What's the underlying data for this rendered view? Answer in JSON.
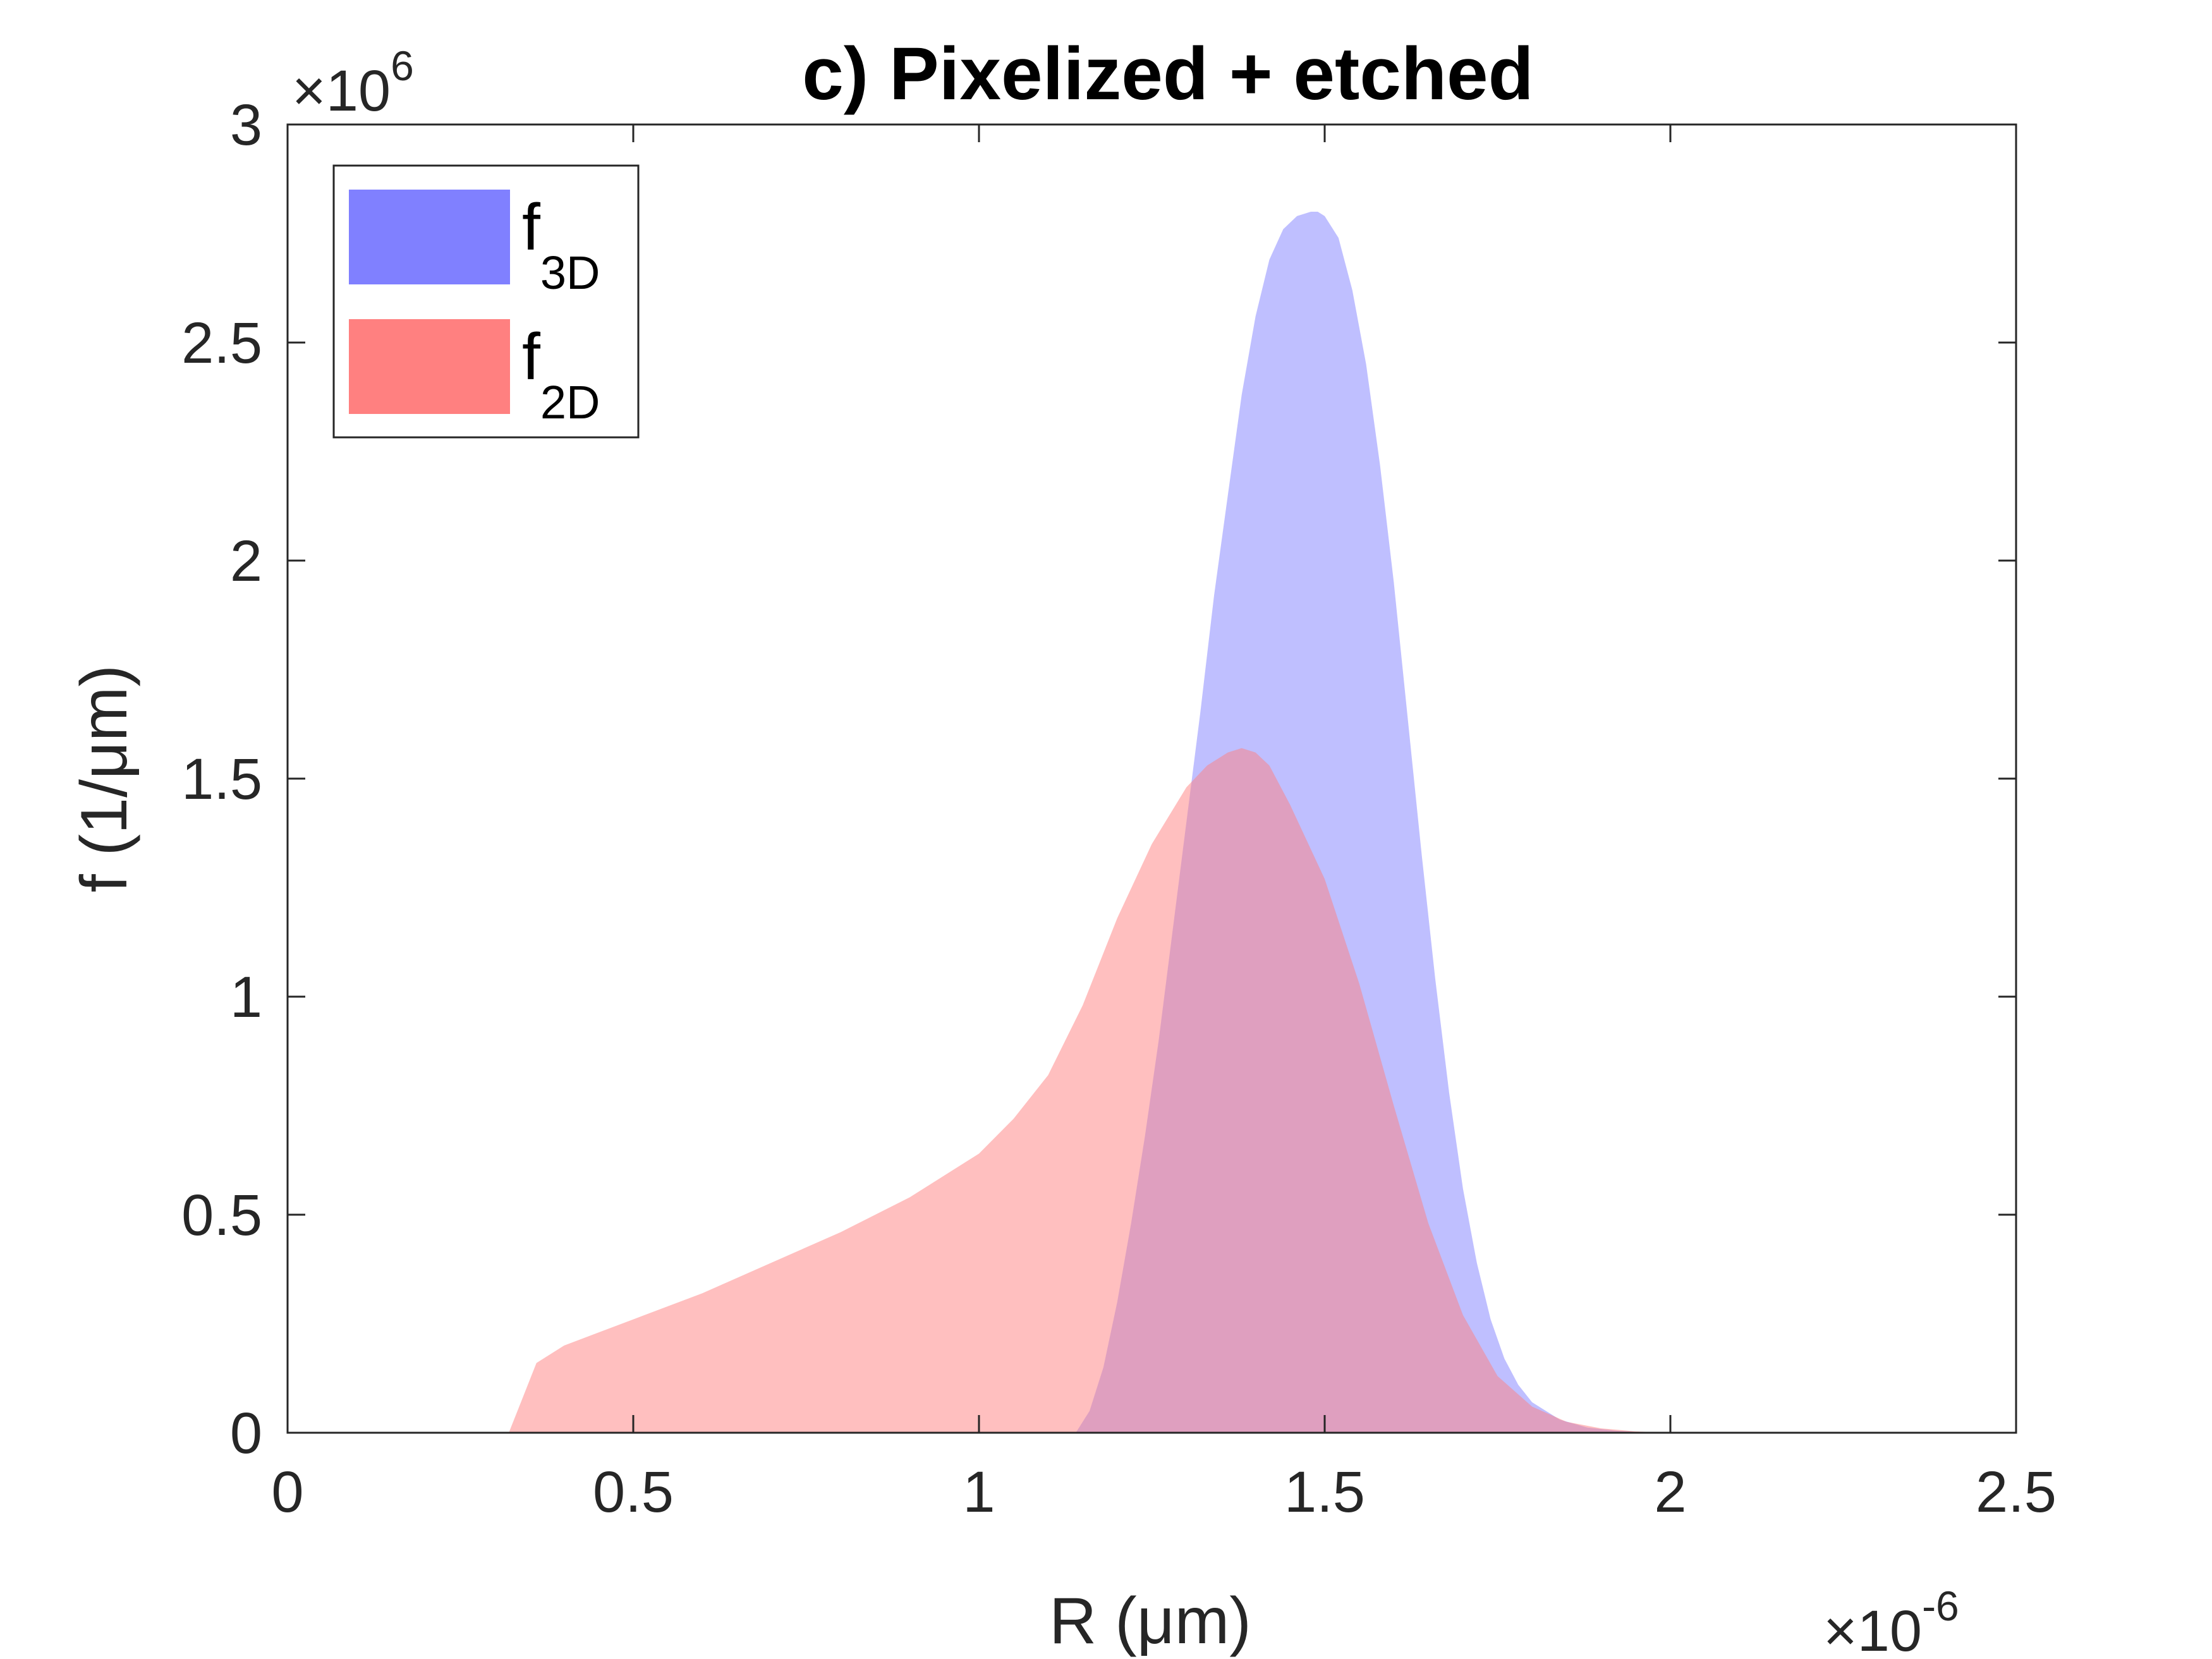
{
  "chart_data": {
    "type": "area",
    "title": "c) Pixelized + etched",
    "xlabel": "R (μm)",
    "ylabel": "f (1/μm)",
    "x_exponent": "×10",
    "x_exponent_power": "-6",
    "y_exponent": "×10",
    "y_exponent_power": "6",
    "xlim": [
      0,
      2.5e-06
    ],
    "ylim": [
      0,
      3000000.0
    ],
    "xticks": [
      0,
      5e-07,
      1e-06,
      1.5e-06,
      2e-06,
      2.5e-06
    ],
    "xtick_labels": [
      "0",
      "0.5",
      "1",
      "1.5",
      "2",
      "2.5"
    ],
    "yticks": [
      0,
      500000.0,
      1000000.0,
      1500000.0,
      2000000.0,
      2500000.0,
      3000000.0
    ],
    "ytick_labels": [
      "0",
      "0.5",
      "1",
      "1.5",
      "2",
      "2.5",
      "3"
    ],
    "grid": false,
    "legend_position": "top-left",
    "series": [
      {
        "name": "f",
        "name_subscript": "3D",
        "color": "#8080ff",
        "x": [
          1.14e-06,
          1.16e-06,
          1.18e-06,
          1.2e-06,
          1.22e-06,
          1.24e-06,
          1.26e-06,
          1.28e-06,
          1.3e-06,
          1.32e-06,
          1.34e-06,
          1.36e-06,
          1.38e-06,
          1.4e-06,
          1.42e-06,
          1.44e-06,
          1.46e-06,
          1.48e-06,
          1.49e-06,
          1.5e-06,
          1.52e-06,
          1.54e-06,
          1.56e-06,
          1.58e-06,
          1.6e-06,
          1.62e-06,
          1.64e-06,
          1.66e-06,
          1.68e-06,
          1.7e-06,
          1.72e-06,
          1.74e-06,
          1.76e-06,
          1.78e-06,
          1.8e-06,
          1.84e-06,
          1.88e-06,
          1.92e-06,
          1.96e-06,
          2e-06
        ],
        "y": [
          0,
          50000,
          150000,
          300000,
          480000,
          680000,
          900000,
          1150000,
          1400000,
          1650000,
          1920000,
          2150000,
          2380000,
          2560000,
          2690000,
          2760000,
          2790000,
          2800000,
          2800000,
          2790000,
          2740000,
          2620000,
          2450000,
          2220000,
          1950000,
          1640000,
          1330000,
          1040000,
          780000,
          560000,
          390000,
          260000,
          170000,
          110000,
          70000,
          30000,
          12000,
          5000,
          1000,
          0
        ]
      },
      {
        "name": "f",
        "name_subscript": "2D",
        "color": "#ff8080",
        "x": [
          3.2e-07,
          3.4e-07,
          3.6e-07,
          4e-07,
          4.5e-07,
          5e-07,
          6e-07,
          7e-07,
          8e-07,
          9e-07,
          1e-06,
          1.05e-06,
          1.1e-06,
          1.15e-06,
          1.2e-06,
          1.25e-06,
          1.3e-06,
          1.33e-06,
          1.36e-06,
          1.38e-06,
          1.4e-06,
          1.42e-06,
          1.45e-06,
          1.5e-06,
          1.55e-06,
          1.6e-06,
          1.65e-06,
          1.7e-06,
          1.75e-06,
          1.8e-06,
          1.85e-06,
          1.9e-06,
          1.95e-06,
          2e-06
        ],
        "y": [
          0,
          80000,
          160000,
          200000,
          230000,
          260000,
          320000,
          390000,
          460000,
          540000,
          640000,
          720000,
          820000,
          980000,
          1180000,
          1350000,
          1480000,
          1530000,
          1560000,
          1570000,
          1560000,
          1530000,
          1440000,
          1270000,
          1030000,
          750000,
          480000,
          270000,
          130000,
          60000,
          25000,
          10000,
          3000,
          0
        ]
      }
    ]
  }
}
